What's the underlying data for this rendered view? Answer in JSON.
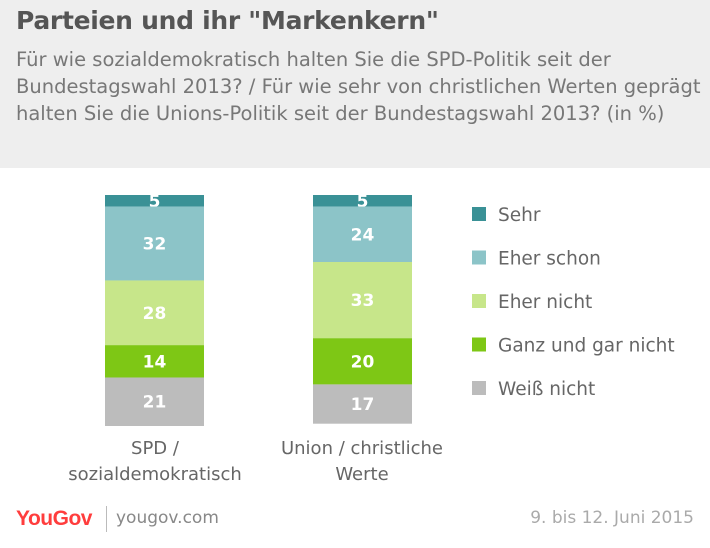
{
  "header": {
    "title": "Parteien und ihr \"Markenkern\"",
    "subtitle": "Für wie sozialdemokratisch halten Sie die SPD-Politik seit der Bundestagswahl 2013? / Für wie sehr von christlichen Werten geprägt halten Sie die Unions-Politik seit der Bundestagswahl 2013? (in %)"
  },
  "footer": {
    "logo": "YouGov",
    "url": "yougov.com",
    "date": "9. bis 12. Juni 2015"
  },
  "chart_data": {
    "type": "bar",
    "stacked": true,
    "categories": [
      "SPD / sozialdemokratisch",
      "Union / christliche Werte"
    ],
    "category_lines": [
      [
        "SPD /",
        "sozialdemokratisch"
      ],
      [
        "Union / christliche",
        "Werte"
      ]
    ],
    "series": [
      {
        "name": "Sehr",
        "values": [
          5,
          5
        ],
        "color": "#3a9196"
      },
      {
        "name": "Eher schon",
        "values": [
          32,
          24
        ],
        "color": "#8cc4c8"
      },
      {
        "name": "Eher nicht",
        "values": [
          28,
          33
        ],
        "color": "#c7e68a"
      },
      {
        "name": "Ganz und gar nicht",
        "values": [
          14,
          20
        ],
        "color": "#7ec715"
      },
      {
        "name": "Weiß nicht",
        "values": [
          21,
          17
        ],
        "color": "#bcbcbc"
      }
    ],
    "legend_position": "right",
    "value_labels": true,
    "value_label_color": "#ffffff"
  }
}
